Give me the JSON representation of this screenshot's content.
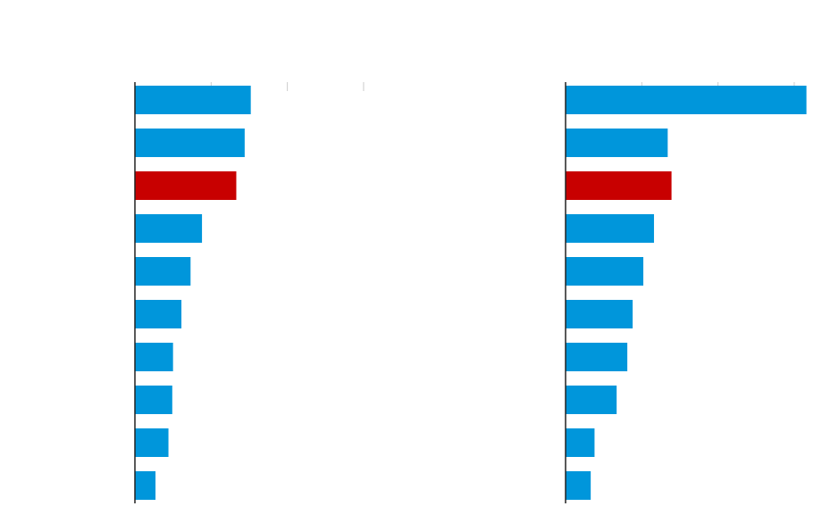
{
  "chart_data": [
    {
      "type": "bar",
      "orientation": "horizontal",
      "categories": [
        null,
        null,
        null,
        null,
        null,
        null,
        null,
        null,
        null,
        null
      ],
      "values": [
        1.52,
        1.44,
        1.33,
        0.88,
        0.73,
        0.61,
        0.5,
        0.49,
        0.44,
        0.27
      ],
      "colors": [
        "#0096db",
        "#0096db",
        "#c80000",
        "#0096db",
        "#0096db",
        "#0096db",
        "#0096db",
        "#0096db",
        "#0096db",
        "#0096db"
      ],
      "xlim": [
        0,
        3.2
      ],
      "xticks": [
        0,
        1,
        2,
        3
      ]
    },
    {
      "type": "bar",
      "orientation": "horizontal",
      "categories": [
        null,
        null,
        null,
        null,
        null,
        null,
        null,
        null,
        null,
        null
      ],
      "values": [
        3.16,
        1.34,
        1.39,
        1.16,
        1.02,
        0.88,
        0.81,
        0.67,
        0.38,
        0.33
      ],
      "colors": [
        "#0096db",
        "#0096db",
        "#c80000",
        "#0096db",
        "#0096db",
        "#0096db",
        "#0096db",
        "#0096db",
        "#0096db",
        "#0096db"
      ],
      "xlim": [
        0,
        3.2
      ],
      "xticks": [
        0,
        1,
        2,
        3
      ]
    }
  ]
}
